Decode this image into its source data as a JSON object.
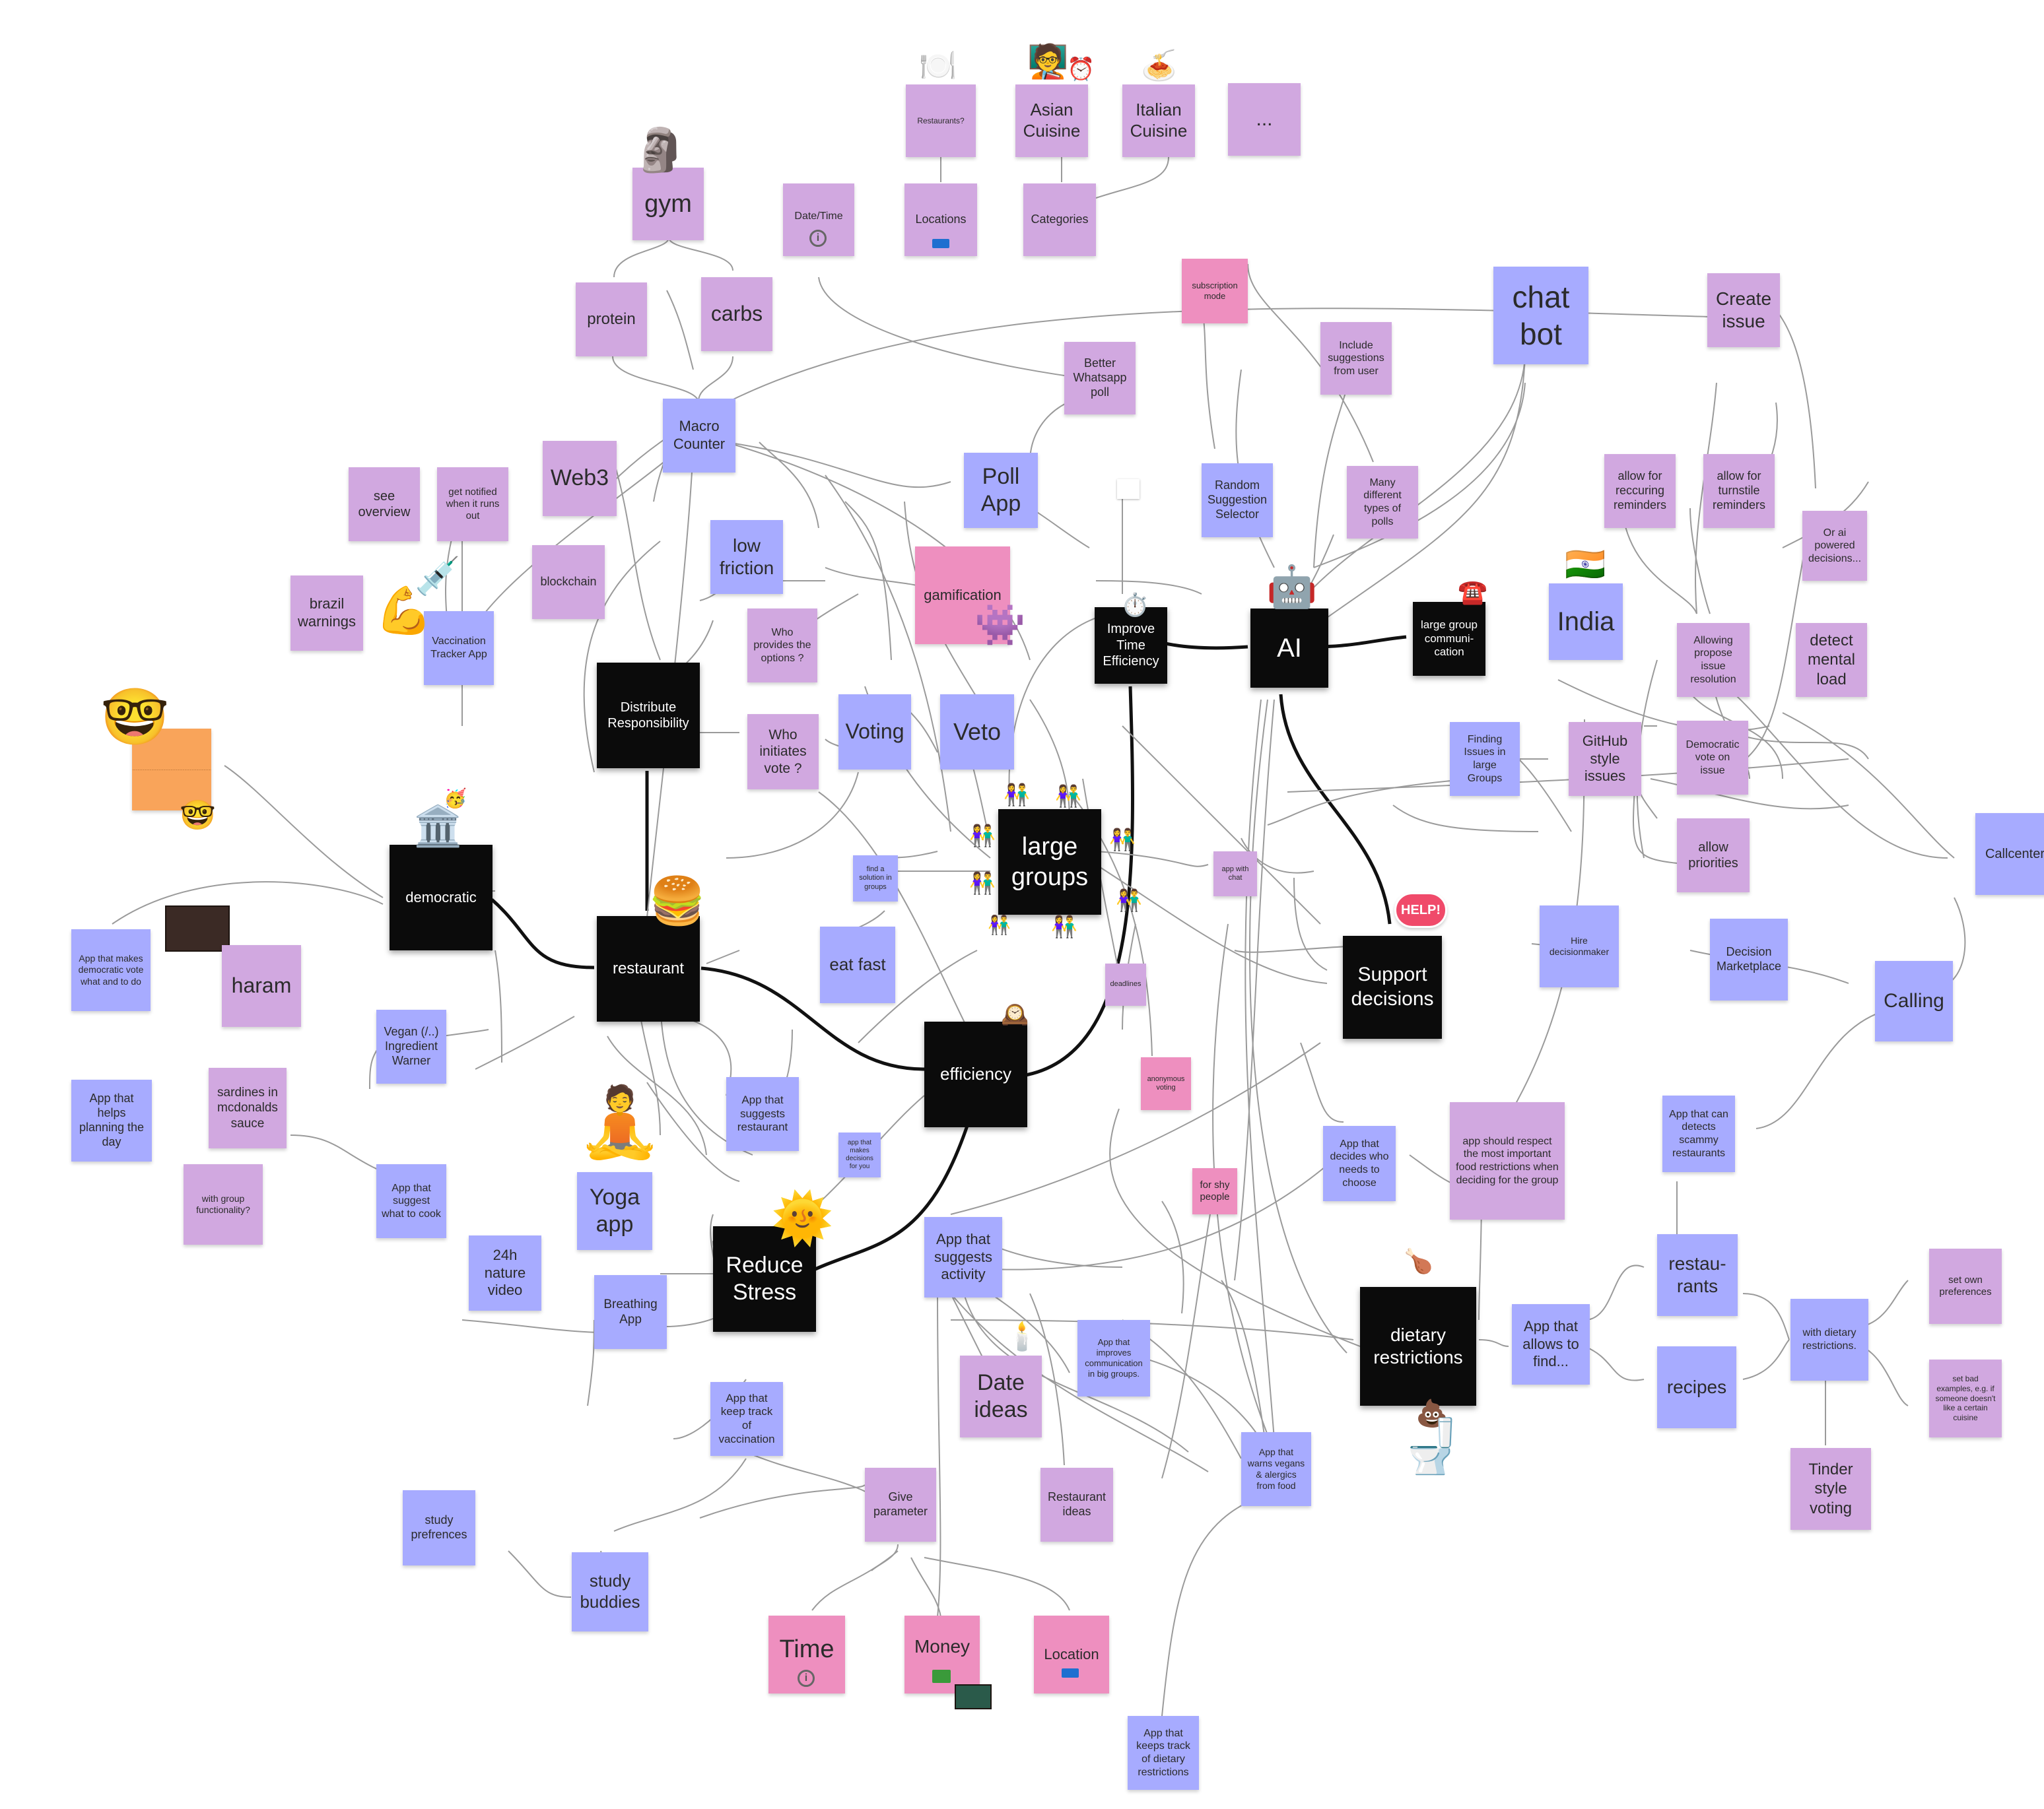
{
  "notes": {
    "restaurants_q": "Restaurants?",
    "asian": "Asian Cuisine",
    "italian": "Italian Cuisine",
    "ellipsis": "...",
    "date_time": "Date/Time",
    "locations": "Locations",
    "categories": "Categories",
    "gym": "gym",
    "protein": "protein",
    "carbs": "carbs",
    "subscription": "subscription mode",
    "chatbot": "chat bot",
    "create_issue": "Create issue",
    "better_whatsapp": "Better Whatsapp poll",
    "include_suggestions": "Include suggestions from user",
    "macro": "Macro Counter",
    "web3": "Web3",
    "see_overview": "see overview",
    "get_notified": "get notified when it runs out",
    "poll_app": "Poll App",
    "random_suggestion": "Random Suggestion Selector",
    "many_polls": "Many different types of polls",
    "allow_recurring": "allow for reccuring reminders",
    "allow_turnstile": "allow for turnstile reminders",
    "or_ai": "Or ai powered decisions...",
    "blockchain": "blockchain",
    "low_friction": "low friction",
    "gamification": "gamification",
    "brazil": "brazil warnings",
    "vaccination": "Vaccination Tracker App",
    "who_provides": "Who provides the options ?",
    "improve_time": "Improve Time Efficiency",
    "ai": "AI",
    "large_group_comm": "large group communi-cation",
    "india": "India",
    "allowing_propose": "Allowing propose issue resolution",
    "detect_mental": "detect mental load",
    "distribute": "Distribute Responsibility",
    "who_initiates": "Who initiates vote ?",
    "voting": "Voting",
    "veto": "Veto",
    "finding_issues": "Finding Issues in large Groups",
    "github": "GitHub style issues",
    "democratic_vote": "Democratic vote on issue",
    "large_groups": "large groups",
    "democratic": "democratic",
    "allow_priorities": "allow priorities",
    "callcenter": "Callcenter",
    "find_solution": "find a solution in groups",
    "app_with_chat": "app with chat",
    "app_democratic": "App that makes democratic vote what and to do",
    "haram": "haram",
    "restaurant": "restaurant",
    "eat_fast": "eat fast",
    "hire": "Hire decisionmaker",
    "decision_market": "Decision Marketplace",
    "support": "Support decisions",
    "calling": "Calling",
    "vegan_warner": "Vegan (/..) Ingredient Warner",
    "deadlines": "deadlines",
    "efficiency": "efficiency",
    "anonymous": "anonymous voting",
    "sardines": "sardines in mcdonalds sauce",
    "app_helps": "App that helps planning the day",
    "app_suggests_restaurant": "App that suggests restaurant",
    "app_makes_decisions": "app that makes decisions for you",
    "app_decides": "App that decides who needs to choose",
    "app_should_respect": "app should respect the most important food restrictions when deciding for the group",
    "app_detects_scammy": "App that can detects scammy restaurants",
    "group_functionality": "with group functionality?",
    "app_cook": "App that suggest what to cook",
    "yoga": "Yoga app",
    "for_shy": "for shy people",
    "app_activity": "App that suggests activity",
    "restaurants2": "restau- rants",
    "set_own": "set own preferences",
    "nature": "24h nature video",
    "breathing": "Breathing App",
    "reduce_stress": "Reduce Stress",
    "dietary": "dietary restrictions",
    "app_allows": "App that allows to find...",
    "with_dietary": "with dietary restrictions.",
    "improves_comm": "App that improves communication in big groups.",
    "date_ideas": "Date ideas",
    "recipes": "recipes",
    "set_bad": "set bad examples, e.g. if someone doesn't like a certain cuisine",
    "vaccination_track": "App that keep track of vaccination",
    "warns_vegans": "App that warns vegans & alergics from food",
    "tinder": "Tinder style voting",
    "study_prefs": "study prefrences",
    "give_param": "Give parameter",
    "restaurant_ideas": "Restaurant ideas",
    "study_buddies": "study buddies",
    "time": "Time",
    "money": "Money",
    "location": "Location",
    "dietary_track": "App that keeps track of dietary restrictions"
  },
  "icons": {
    "moai": "🗿",
    "syringe": "💉",
    "flexed_bicep": "💪",
    "nerd_pointing": "🤓",
    "bank": "🏛️",
    "burger": "🍔",
    "alien_monster": "👾",
    "stopwatch": "⏱️",
    "robot": "🤖",
    "telephone": "☎️",
    "india_flag": "🇮🇳",
    "help_bubble": "HELP!",
    "people_pair": "👫",
    "mantelpiece_clock": "🕰️",
    "yoga_person": "🧘",
    "sun_smile": "🌞",
    "candle": "🕯️",
    "poo": "💩",
    "toilet": "🚽",
    "pizza_plate": "🍝",
    "fork_plate": "🍽️",
    "chicken_leg": "🍗"
  },
  "colors": {
    "purple_note": "#d1a8e0",
    "blue_note": "#a7abff",
    "pink_note": "#ee8fbf",
    "black_note": "#0b0b0b",
    "orange_note": "#f9a45a",
    "connector": "#9a9a9a",
    "connector_strong": "#111111"
  }
}
